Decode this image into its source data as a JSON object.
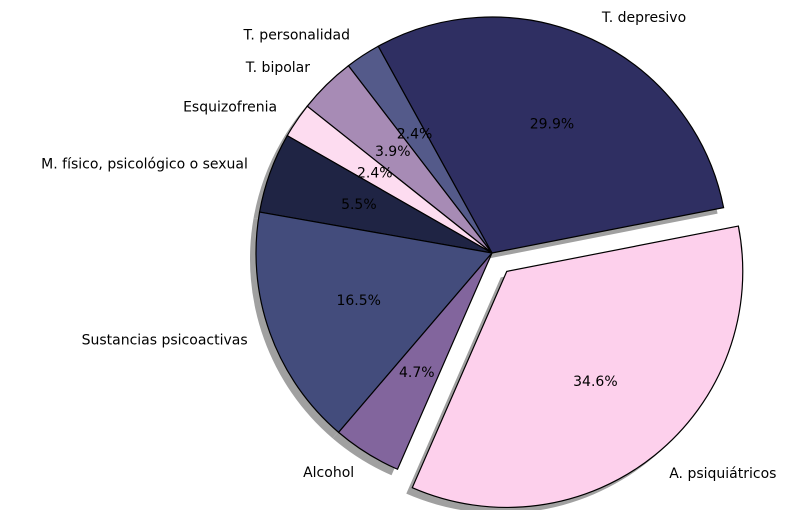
{
  "chart_data": {
    "type": "pie",
    "categories": [
      "A. psiquiátricos",
      "T. depresivo",
      "T. personalidad",
      "T. bipolar",
      "Esquizofrenia",
      "M. físico, psicológico o sexual",
      "Sustancias psicoactivas",
      "Alcohol"
    ],
    "values": [
      34.6,
      29.9,
      2.4,
      3.9,
      2.4,
      5.5,
      16.5,
      4.7
    ],
    "value_labels": [
      "34.6%",
      "29.9%",
      "2.4%",
      "3.9%",
      "2.4%",
      "5.5%",
      "16.5%",
      "4.7%"
    ],
    "colors": [
      "#fdd0ec",
      "#2f2f62",
      "#545a8a",
      "#a78bb5",
      "#fddcf0",
      "#1f2444",
      "#434c7c",
      "#82659d"
    ],
    "explode": [
      0.1,
      0,
      0,
      0,
      0,
      0,
      0,
      0
    ],
    "startangle": -113.6,
    "shadow": true
  }
}
